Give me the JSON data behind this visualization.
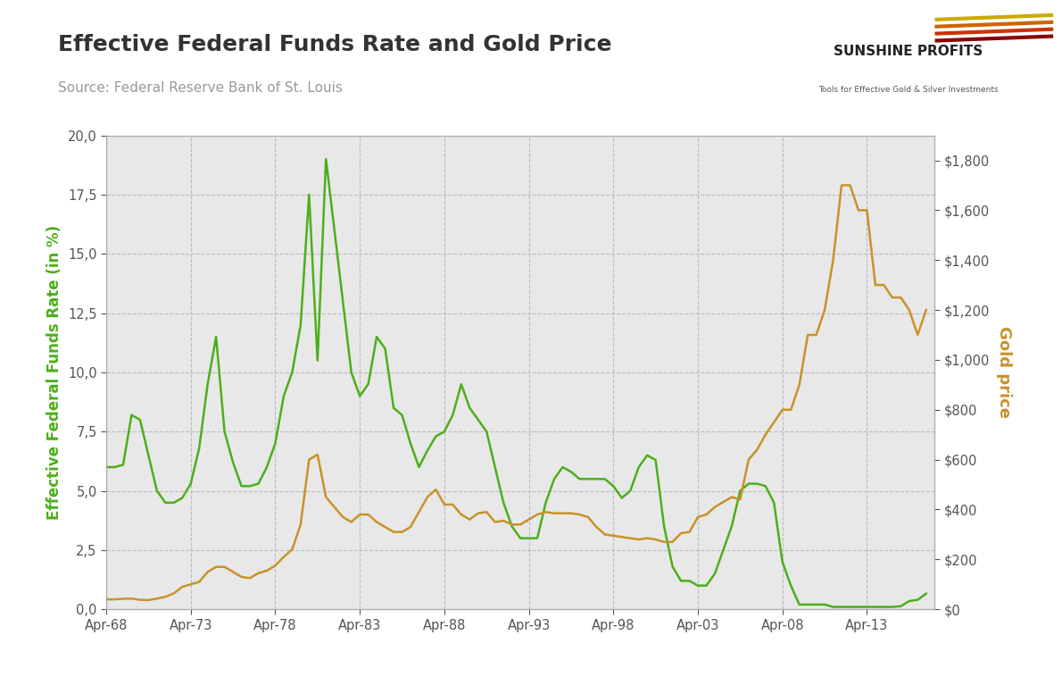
{
  "title": "Effective Federal Funds Rate and Gold Price",
  "source": "Source: Federal Reserve Bank of St. Louis",
  "left_ylabel": "Effective Federal Funds Rate (in %)",
  "right_ylabel": "Gold price",
  "left_color": "#4caf1a",
  "right_color": "#c8922a",
  "background_color": "#e8e8e8",
  "outer_background": "#ffffff",
  "title_color": "#333333",
  "source_color": "#999999",
  "grid_color": "#bbbbbb",
  "left_ylim": [
    0,
    20
  ],
  "right_ylim": [
    0,
    1900
  ],
  "left_yticks": [
    0.0,
    2.5,
    5.0,
    7.5,
    10.0,
    12.5,
    15.0,
    17.5,
    20.0
  ],
  "right_yticks": [
    0,
    200,
    400,
    600,
    800,
    1000,
    1200,
    1400,
    1600,
    1800
  ],
  "right_yticklabels": [
    "$0",
    "$200",
    "$400",
    "$600",
    "$800",
    "$1,000",
    "$1,200",
    "$1,400",
    "$1,600",
    "$1,800"
  ],
  "xtick_labels": [
    "Apr-68",
    "Apr-73",
    "Apr-78",
    "Apr-83",
    "Apr-88",
    "Apr-93",
    "Apr-98",
    "Apr-03",
    "Apr-08",
    "Apr-13"
  ],
  "ffr_years": [
    1968,
    1968.5,
    1969,
    1969.5,
    1970,
    1970.5,
    1971,
    1971.5,
    1972,
    1972.5,
    1973,
    1973.5,
    1974,
    1974.5,
    1975,
    1975.5,
    1976,
    1976.5,
    1977,
    1977.5,
    1978,
    1978.5,
    1979,
    1979.5,
    1980,
    1980.5,
    1981,
    1981.5,
    1982,
    1982.5,
    1983,
    1983.5,
    1984,
    1984.5,
    1985,
    1985.5,
    1986,
    1986.5,
    1987,
    1987.5,
    1988,
    1988.5,
    1989,
    1989.5,
    1990,
    1990.5,
    1991,
    1991.5,
    1992,
    1992.5,
    1993,
    1993.5,
    1994,
    1994.5,
    1995,
    1995.5,
    1996,
    1996.5,
    1997,
    1997.5,
    1998,
    1998.5,
    1999,
    1999.5,
    2000,
    2000.5,
    2001,
    2001.5,
    2002,
    2002.5,
    2003,
    2003.5,
    2004,
    2004.5,
    2005,
    2005.5,
    2006,
    2006.5,
    2007,
    2007.5,
    2008,
    2008.5,
    2009,
    2009.5,
    2010,
    2010.5,
    2011,
    2011.5,
    2012,
    2012.5,
    2013,
    2013.5,
    2014,
    2014.5,
    2015,
    2015.5,
    2016,
    2016.5
  ],
  "ffr_vals": [
    6.0,
    6.0,
    6.1,
    8.2,
    8.0,
    6.5,
    5.0,
    4.5,
    4.5,
    4.7,
    5.3,
    6.8,
    9.5,
    11.5,
    7.5,
    6.2,
    5.2,
    5.2,
    5.3,
    6.0,
    7.0,
    9.0,
    10.0,
    12.0,
    17.5,
    10.5,
    19.0,
    16.0,
    13.0,
    10.0,
    9.0,
    9.5,
    11.5,
    11.0,
    8.5,
    8.2,
    7.0,
    6.0,
    6.7,
    7.3,
    7.5,
    8.2,
    9.5,
    8.5,
    8.0,
    7.5,
    6.0,
    4.5,
    3.5,
    3.0,
    3.0,
    3.0,
    4.5,
    5.5,
    6.0,
    5.8,
    5.5,
    5.5,
    5.5,
    5.5,
    5.2,
    4.7,
    5.0,
    6.0,
    6.5,
    6.3,
    3.5,
    1.8,
    1.2,
    1.2,
    1.0,
    1.0,
    1.5,
    2.5,
    3.5,
    5.0,
    5.3,
    5.3,
    5.2,
    4.5,
    2.0,
    1.0,
    0.2,
    0.2,
    0.2,
    0.2,
    0.1,
    0.1,
    0.1,
    0.1,
    0.1,
    0.1,
    0.1,
    0.1,
    0.13,
    0.35,
    0.4,
    0.66
  ],
  "gold_years": [
    1968,
    1968.5,
    1969,
    1969.5,
    1970,
    1970.5,
    1971,
    1971.5,
    1972,
    1972.5,
    1973,
    1973.5,
    1974,
    1974.5,
    1975,
    1975.5,
    1976,
    1976.5,
    1977,
    1977.5,
    1978,
    1978.5,
    1979,
    1979.5,
    1980,
    1980.5,
    1981,
    1981.5,
    1982,
    1982.5,
    1983,
    1983.5,
    1984,
    1984.5,
    1985,
    1985.5,
    1986,
    1986.5,
    1987,
    1987.5,
    1988,
    1988.5,
    1989,
    1989.5,
    1990,
    1990.5,
    1991,
    1991.5,
    1992,
    1992.5,
    1993,
    1993.5,
    1994,
    1994.5,
    1995,
    1995.5,
    1996,
    1996.5,
    1997,
    1997.5,
    1998,
    1998.5,
    1999,
    1999.5,
    2000,
    2000.5,
    2001,
    2001.5,
    2002,
    2002.5,
    2003,
    2003.5,
    2004,
    2004.5,
    2005,
    2005.5,
    2006,
    2006.5,
    2007,
    2007.5,
    2008,
    2008.5,
    2009,
    2009.5,
    2010,
    2010.5,
    2011,
    2011.5,
    2012,
    2012.5,
    2013,
    2013.5,
    2014,
    2014.5,
    2015,
    2015.5,
    2016,
    2016.5
  ],
  "gold_vals": [
    40,
    40,
    42,
    43,
    38,
    37,
    43,
    50,
    64,
    90,
    100,
    110,
    150,
    170,
    170,
    150,
    130,
    125,
    145,
    155,
    175,
    210,
    240,
    340,
    600,
    620,
    450,
    410,
    370,
    350,
    380,
    380,
    350,
    330,
    310,
    310,
    330,
    390,
    450,
    480,
    420,
    420,
    380,
    360,
    385,
    390,
    350,
    355,
    340,
    340,
    360,
    380,
    390,
    385,
    385,
    385,
    380,
    370,
    330,
    300,
    295,
    290,
    285,
    280,
    285,
    280,
    270,
    270,
    305,
    310,
    370,
    380,
    410,
    430,
    450,
    440,
    600,
    640,
    700,
    750,
    800,
    800,
    900,
    1100,
    1100,
    1200,
    1400,
    1700,
    1700,
    1600,
    1600,
    1300,
    1300,
    1250,
    1250,
    1200,
    1100,
    1200
  ],
  "title_fontsize": 18,
  "source_fontsize": 11,
  "axis_label_fontsize": 12,
  "tick_fontsize": 10.5
}
